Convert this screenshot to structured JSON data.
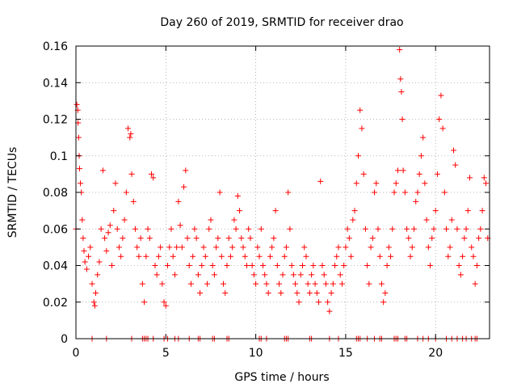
{
  "chart_data": {
    "type": "scatter",
    "title": "Day 260 of 2019, SRMTID for receiver drao",
    "xlabel": "GPS time / hours",
    "ylabel": "SRMTID / TECUs",
    "xlim": [
      0,
      23
    ],
    "ylim": [
      0,
      0.16
    ],
    "x_ticks": [
      0,
      5,
      10,
      15,
      20
    ],
    "x_tick_labels": [
      "0",
      "5",
      "10",
      "15",
      "20"
    ],
    "y_ticks": [
      0,
      0.02,
      0.04,
      0.06,
      0.08,
      0.1,
      0.12,
      0.14,
      0.16
    ],
    "y_tick_labels": [
      "0",
      "0.02",
      "0.04",
      "0.06",
      "0.08",
      "0.1",
      "0.12",
      "0.14",
      "0.16"
    ],
    "grid": true,
    "marker": "+",
    "series": [
      {
        "name": "SRMTID",
        "color": "#ff0000",
        "points": [
          [
            0.0,
            0.06
          ],
          [
            0.05,
            0.128
          ],
          [
            0.1,
            0.125
          ],
          [
            0.12,
            0.118
          ],
          [
            0.15,
            0.11
          ],
          [
            0.18,
            0.1
          ],
          [
            0.2,
            0.093
          ],
          [
            0.25,
            0.085
          ],
          [
            0.3,
            0.08
          ],
          [
            0.35,
            0.065
          ],
          [
            0.4,
            0.055
          ],
          [
            0.45,
            0.048
          ],
          [
            0.5,
            0.042
          ],
          [
            0.6,
            0.038
          ],
          [
            0.7,
            0.045
          ],
          [
            0.8,
            0.05
          ],
          [
            0.9,
            0.03
          ],
          [
            1.0,
            0.02
          ],
          [
            1.05,
            0.018
          ],
          [
            1.1,
            0.025
          ],
          [
            1.2,
            0.035
          ],
          [
            1.3,
            0.042
          ],
          [
            1.4,
            0.06
          ],
          [
            1.5,
            0.092
          ],
          [
            1.6,
            0.055
          ],
          [
            1.7,
            0.048
          ],
          [
            1.8,
            0.058
          ],
          [
            1.9,
            0.062
          ],
          [
            2.0,
            0.04
          ],
          [
            2.1,
            0.07
          ],
          [
            2.2,
            0.085
          ],
          [
            2.3,
            0.06
          ],
          [
            2.4,
            0.05
          ],
          [
            2.5,
            0.045
          ],
          [
            2.6,
            0.055
          ],
          [
            2.7,
            0.065
          ],
          [
            2.8,
            0.08
          ],
          [
            2.9,
            0.115
          ],
          [
            3.0,
            0.11
          ],
          [
            3.05,
            0.112
          ],
          [
            3.1,
            0.09
          ],
          [
            3.2,
            0.075
          ],
          [
            3.3,
            0.06
          ],
          [
            3.4,
            0.05
          ],
          [
            3.5,
            0.045
          ],
          [
            3.6,
            0.055
          ],
          [
            3.7,
            0.03
          ],
          [
            3.8,
            0.02
          ],
          [
            3.9,
            0.045
          ],
          [
            4.0,
            0.06
          ],
          [
            4.1,
            0.055
          ],
          [
            4.2,
            0.09
          ],
          [
            4.3,
            0.088
          ],
          [
            4.4,
            0.04
          ],
          [
            4.5,
            0.035
          ],
          [
            4.6,
            0.045
          ],
          [
            4.7,
            0.05
          ],
          [
            4.8,
            0.03
          ],
          [
            4.9,
            0.02
          ],
          [
            5.0,
            0.018
          ],
          [
            5.1,
            0.04
          ],
          [
            5.2,
            0.05
          ],
          [
            5.3,
            0.06
          ],
          [
            5.4,
            0.045
          ],
          [
            5.5,
            0.035
          ],
          [
            5.6,
            0.05
          ],
          [
            5.7,
            0.075
          ],
          [
            5.8,
            0.062
          ],
          [
            5.9,
            0.05
          ],
          [
            6.0,
            0.083
          ],
          [
            6.1,
            0.092
          ],
          [
            6.2,
            0.055
          ],
          [
            6.3,
            0.04
          ],
          [
            6.4,
            0.03
          ],
          [
            6.5,
            0.045
          ],
          [
            6.6,
            0.06
          ],
          [
            6.7,
            0.055
          ],
          [
            6.8,
            0.035
          ],
          [
            6.9,
            0.025
          ],
          [
            7.0,
            0.04
          ],
          [
            7.1,
            0.05
          ],
          [
            7.2,
            0.045
          ],
          [
            7.3,
            0.03
          ],
          [
            7.4,
            0.06
          ],
          [
            7.5,
            0.065
          ],
          [
            7.6,
            0.04
          ],
          [
            7.7,
            0.035
          ],
          [
            7.8,
            0.05
          ],
          [
            7.9,
            0.055
          ],
          [
            8.0,
            0.08
          ],
          [
            8.1,
            0.045
          ],
          [
            8.2,
            0.03
          ],
          [
            8.3,
            0.025
          ],
          [
            8.4,
            0.04
          ],
          [
            8.5,
            0.055
          ],
          [
            8.6,
            0.045
          ],
          [
            8.7,
            0.05
          ],
          [
            8.8,
            0.065
          ],
          [
            8.9,
            0.06
          ],
          [
            9.0,
            0.078
          ],
          [
            9.1,
            0.07
          ],
          [
            9.2,
            0.055
          ],
          [
            9.3,
            0.05
          ],
          [
            9.4,
            0.045
          ],
          [
            9.5,
            0.04
          ],
          [
            9.6,
            0.06
          ],
          [
            9.7,
            0.055
          ],
          [
            9.8,
            0.04
          ],
          [
            9.9,
            0.035
          ],
          [
            10.0,
            0.03
          ],
          [
            10.1,
            0.05
          ],
          [
            10.2,
            0.045
          ],
          [
            10.3,
            0.06
          ],
          [
            10.4,
            0.04
          ],
          [
            10.5,
            0.035
          ],
          [
            10.6,
            0.03
          ],
          [
            10.7,
            0.025
          ],
          [
            10.8,
            0.045
          ],
          [
            10.9,
            0.05
          ],
          [
            11.0,
            0.055
          ],
          [
            11.1,
            0.07
          ],
          [
            11.2,
            0.04
          ],
          [
            11.3,
            0.03
          ],
          [
            11.4,
            0.025
          ],
          [
            11.5,
            0.035
          ],
          [
            11.6,
            0.045
          ],
          [
            11.7,
            0.05
          ],
          [
            11.8,
            0.08
          ],
          [
            11.9,
            0.06
          ],
          [
            12.0,
            0.04
          ],
          [
            12.1,
            0.035
          ],
          [
            12.2,
            0.03
          ],
          [
            12.3,
            0.025
          ],
          [
            12.4,
            0.02
          ],
          [
            12.5,
            0.035
          ],
          [
            12.6,
            0.04
          ],
          [
            12.7,
            0.05
          ],
          [
            12.8,
            0.045
          ],
          [
            12.9,
            0.03
          ],
          [
            13.0,
            0.025
          ],
          [
            13.1,
            0.035
          ],
          [
            13.2,
            0.04
          ],
          [
            13.3,
            0.03
          ],
          [
            13.4,
            0.025
          ],
          [
            13.5,
            0.02
          ],
          [
            13.6,
            0.086
          ],
          [
            13.7,
            0.04
          ],
          [
            13.8,
            0.035
          ],
          [
            13.9,
            0.03
          ],
          [
            14.0,
            0.02
          ],
          [
            14.1,
            0.015
          ],
          [
            14.2,
            0.025
          ],
          [
            14.3,
            0.03
          ],
          [
            14.4,
            0.04
          ],
          [
            14.5,
            0.045
          ],
          [
            14.6,
            0.05
          ],
          [
            14.7,
            0.035
          ],
          [
            14.8,
            0.03
          ],
          [
            14.9,
            0.04
          ],
          [
            15.0,
            0.05
          ],
          [
            15.1,
            0.06
          ],
          [
            15.2,
            0.055
          ],
          [
            15.3,
            0.045
          ],
          [
            15.4,
            0.065
          ],
          [
            15.5,
            0.07
          ],
          [
            15.6,
            0.085
          ],
          [
            15.7,
            0.1
          ],
          [
            15.8,
            0.125
          ],
          [
            15.9,
            0.115
          ],
          [
            16.0,
            0.09
          ],
          [
            16.1,
            0.06
          ],
          [
            16.2,
            0.04
          ],
          [
            16.3,
            0.03
          ],
          [
            16.4,
            0.05
          ],
          [
            16.5,
            0.055
          ],
          [
            16.6,
            0.08
          ],
          [
            16.7,
            0.085
          ],
          [
            16.8,
            0.06
          ],
          [
            16.9,
            0.045
          ],
          [
            17.0,
            0.03
          ],
          [
            17.1,
            0.02
          ],
          [
            17.2,
            0.025
          ],
          [
            17.3,
            0.04
          ],
          [
            17.4,
            0.05
          ],
          [
            17.5,
            0.045
          ],
          [
            17.6,
            0.06
          ],
          [
            17.7,
            0.08
          ],
          [
            17.8,
            0.085
          ],
          [
            17.9,
            0.092
          ],
          [
            18.0,
            0.158
          ],
          [
            18.05,
            0.142
          ],
          [
            18.1,
            0.135
          ],
          [
            18.15,
            0.12
          ],
          [
            18.2,
            0.092
          ],
          [
            18.3,
            0.08
          ],
          [
            18.4,
            0.06
          ],
          [
            18.5,
            0.055
          ],
          [
            18.6,
            0.045
          ],
          [
            18.7,
            0.05
          ],
          [
            18.8,
            0.06
          ],
          [
            18.9,
            0.075
          ],
          [
            19.0,
            0.08
          ],
          [
            19.1,
            0.09
          ],
          [
            19.2,
            0.1
          ],
          [
            19.3,
            0.11
          ],
          [
            19.4,
            0.085
          ],
          [
            19.5,
            0.065
          ],
          [
            19.6,
            0.05
          ],
          [
            19.7,
            0.04
          ],
          [
            19.8,
            0.055
          ],
          [
            19.9,
            0.06
          ],
          [
            20.0,
            0.07
          ],
          [
            20.1,
            0.09
          ],
          [
            20.2,
            0.12
          ],
          [
            20.3,
            0.133
          ],
          [
            20.4,
            0.115
          ],
          [
            20.5,
            0.08
          ],
          [
            20.6,
            0.06
          ],
          [
            20.7,
            0.045
          ],
          [
            20.8,
            0.05
          ],
          [
            20.9,
            0.065
          ],
          [
            21.0,
            0.103
          ],
          [
            21.1,
            0.095
          ],
          [
            21.2,
            0.06
          ],
          [
            21.3,
            0.04
          ],
          [
            21.4,
            0.035
          ],
          [
            21.5,
            0.045
          ],
          [
            21.6,
            0.055
          ],
          [
            21.7,
            0.06
          ],
          [
            21.8,
            0.07
          ],
          [
            21.9,
            0.088
          ],
          [
            22.0,
            0.05
          ],
          [
            22.1,
            0.045
          ],
          [
            22.2,
            0.03
          ],
          [
            22.3,
            0.04
          ],
          [
            22.4,
            0.055
          ],
          [
            22.5,
            0.06
          ],
          [
            22.6,
            0.07
          ],
          [
            22.7,
            0.088
          ],
          [
            22.8,
            0.085
          ],
          [
            22.9,
            0.055
          ]
        ]
      }
    ],
    "zero_points_x": [
      0.9,
      1.7,
      3.1,
      3.7,
      3.8,
      3.9,
      4.0,
      4.3,
      4.9,
      5.1,
      5.5,
      5.7,
      6.3,
      6.8,
      6.9,
      7.6,
      7.7,
      8.4,
      8.5,
      10.2,
      10.3,
      10.6,
      11.6,
      11.7,
      11.8,
      13.0,
      13.1,
      14.1,
      14.6,
      15.6,
      15.7,
      15.8,
      16.2,
      16.6,
      16.9,
      17.0,
      17.7,
      17.8,
      17.9,
      18.3,
      18.4,
      19.0,
      19.3,
      19.6,
      20.0,
      20.6,
      20.9,
      21.2,
      21.5,
      21.7,
      22.0,
      22.2,
      22.3
    ]
  }
}
